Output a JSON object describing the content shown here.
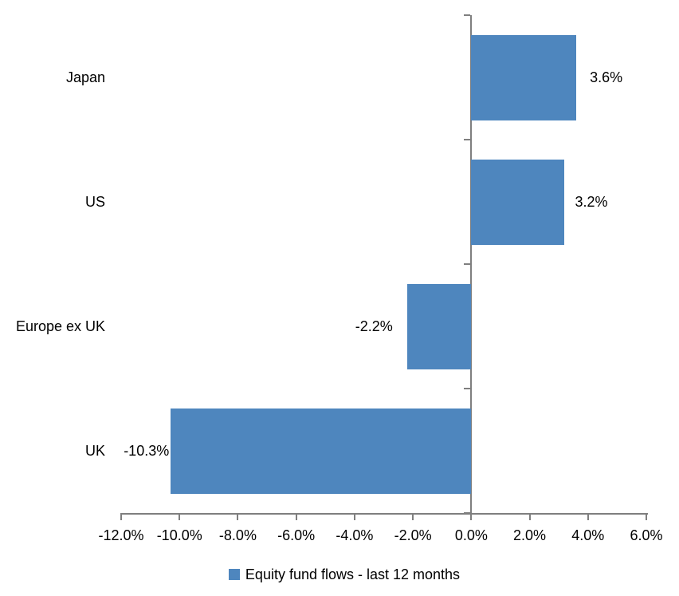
{
  "chart_data": {
    "type": "bar",
    "orientation": "horizontal",
    "title": "",
    "categories": [
      "Japan",
      "US",
      "Europe ex UK",
      "UK"
    ],
    "series": [
      {
        "name": "Equity fund flows - last 12 months",
        "values": [
          3.6,
          3.2,
          -2.2,
          -10.3
        ]
      }
    ],
    "data_labels": [
      "3.6%",
      "3.2%",
      "-2.2%",
      "-10.3%"
    ],
    "xlim": [
      -12,
      6
    ],
    "x_tick_values": [
      -12,
      -10,
      -8,
      -6,
      -4,
      -2,
      0,
      2,
      4,
      6
    ],
    "x_tick_labels": [
      "-12.0%",
      "-10.0%",
      "-8.0%",
      "-6.0%",
      "-4.0%",
      "-2.0%",
      "0.0%",
      "2.0%",
      "4.0%",
      "6.0%"
    ],
    "grid": false,
    "legend": {
      "label": "Equity fund flows - last 12 months",
      "position": "bottom-center",
      "swatch_color": "#4E86BE"
    },
    "colors": {
      "bar": "#4E86BE",
      "axis": "#7F7F7F",
      "text": "#000000",
      "background": "#FFFFFF"
    }
  }
}
